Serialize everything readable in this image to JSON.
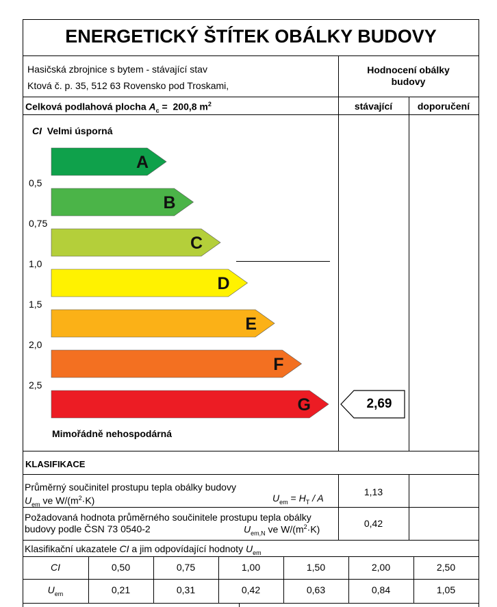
{
  "title": "ENERGETICKÝ ŠTÍTEK OBÁLKY BUDOVY",
  "building": {
    "line1": "Hasičská zbrojnice s bytem - stávající stav",
    "line2": "Ktová č. p. 35, 512 63 Rovensko pod Troskami,"
  },
  "rating_header": {
    "line1": "Hodnocení obálky",
    "line2": "budovy"
  },
  "floor_area": {
    "label": "Celková podlahová plocha",
    "symbol": "A",
    "sub": "c",
    "value": "200,8 m",
    "sup": "2"
  },
  "col_current": "stávající",
  "col_recommended": "doporučení",
  "ci_label": "CI",
  "top_label": "Velmi úsporná",
  "bottom_label": "Mimořádně nehospodárná",
  "bands": [
    {
      "letter": "A",
      "color": "#0fa14b"
    },
    {
      "letter": "B",
      "color": "#4bb448"
    },
    {
      "letter": "C",
      "color": "#b4cf3a"
    },
    {
      "letter": "D",
      "color": "#fff200"
    },
    {
      "letter": "E",
      "color": "#fbb117"
    },
    {
      "letter": "F",
      "color": "#f37021"
    },
    {
      "letter": "G",
      "color": "#ec1c24"
    }
  ],
  "ticks": [
    "0,5",
    "0,75",
    "1,0",
    "1,5",
    "2,0",
    "2,5"
  ],
  "current_value": "2,69",
  "classification": {
    "heading": "KLASIFIKACE",
    "row1_line1": "Průměrný součinitel prostupu tepla obálky budovy",
    "row1_line2_a": "U",
    "row1_line2_sub": "em",
    "row1_line2_b": " ve W/(m",
    "row1_line2_sup": "2",
    "row1_line2_c": "·K)",
    "row1_formula_u": "U",
    "row1_formula_sub": "em",
    "row1_formula_eq": " = ",
    "row1_formula_h": "H",
    "row1_formula_hsub": "T",
    "row1_formula_rest": " / A",
    "row1_value": "1,13",
    "row2_line1": "Požadovaná hodnota průměrného součinitele prostupu tepla obálky",
    "row2_line2": "budovy podle ČSN 73 0540-2",
    "row2_unit_u": "U",
    "row2_unit_sub": "em,N",
    "row2_unit_b": " ve W/(m",
    "row2_unit_sup": "2",
    "row2_unit_c": "·K)",
    "row2_value": "0,42",
    "row3_a": "Klasifikační ukazatele ",
    "row3_ci": "CI",
    "row3_b": " a jim odpovídající hodnoty ",
    "row3_u": "U",
    "row3_sub": "em"
  },
  "table": {
    "ci_label": "CI",
    "uem_label": "U",
    "uem_sub": "em",
    "ci_values": [
      "0,50",
      "0,75",
      "1,00",
      "1,50",
      "2,00",
      "2,50"
    ],
    "uem_values": [
      "0,21",
      "0,31",
      "0,42",
      "0,63",
      "0,84",
      "1,05"
    ]
  }
}
